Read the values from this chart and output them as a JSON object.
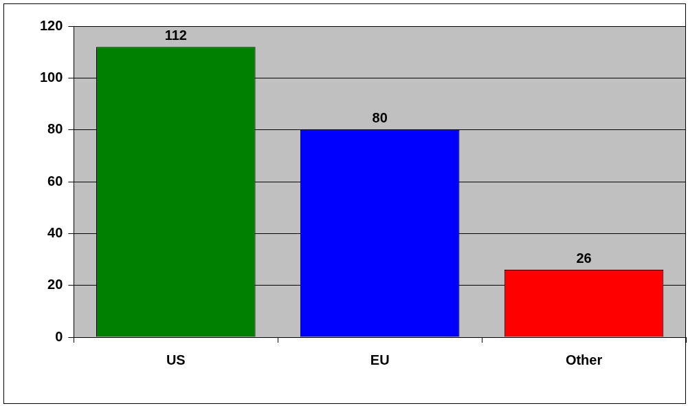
{
  "chart_data": {
    "type": "bar",
    "categories": [
      "US",
      "EU",
      "Other"
    ],
    "values": [
      112,
      80,
      26
    ],
    "colors": [
      "#008000",
      "#0000ff",
      "#ff0000"
    ],
    "ylim": [
      0,
      120
    ],
    "yticks": [
      0,
      20,
      40,
      60,
      80,
      100,
      120
    ],
    "grid": "y",
    "data_labels": true,
    "legend": false
  }
}
